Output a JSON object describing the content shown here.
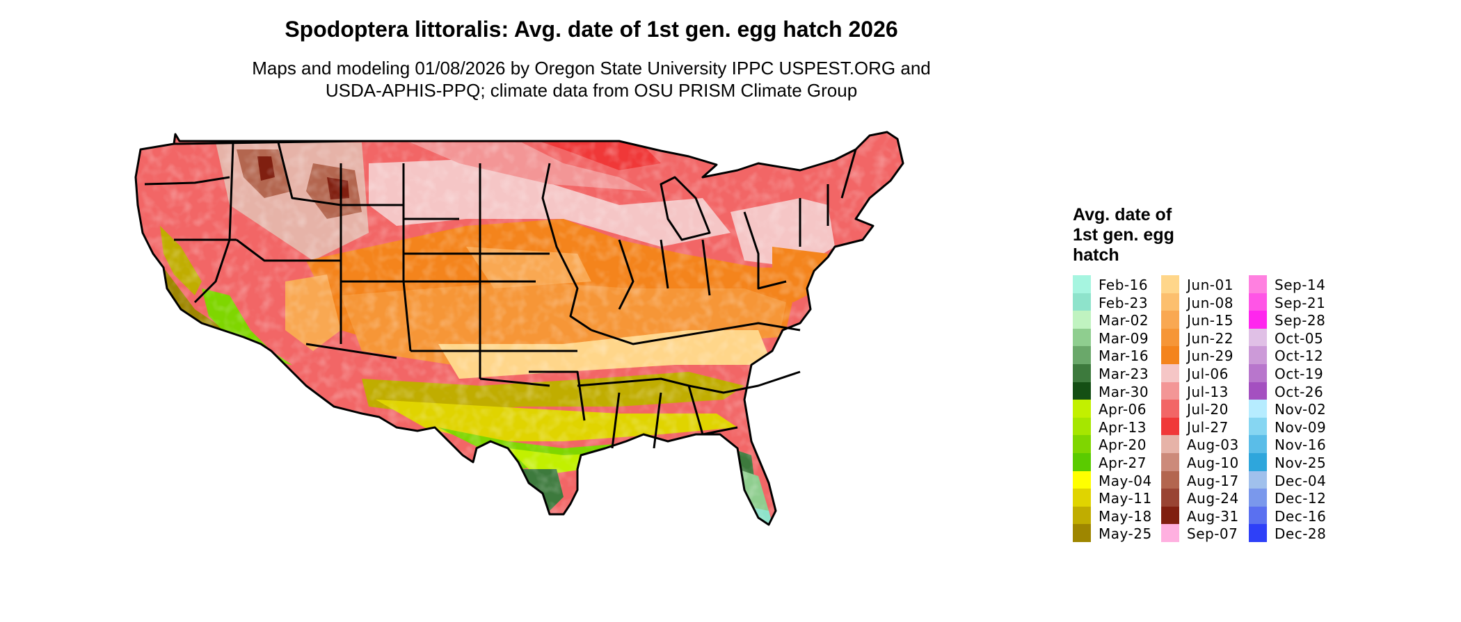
{
  "title": "Spodoptera littoralis: Avg. date of 1st gen. egg hatch 2026",
  "subtitle_lines": [
    "Maps and modeling 01/08/2026 by Oregon State University IPPC USPEST.ORG and",
    "USDA-APHIS-PPQ; climate data from OSU PRISM Climate Group"
  ],
  "map": {
    "region": "Contiguous United States",
    "state_border_color": "#000000",
    "fill_legend_ref": "legend.items"
  },
  "legend": {
    "title_lines": [
      "Avg. date of",
      "1st gen. egg",
      "hatch"
    ],
    "columns": 3,
    "rows_per_column": 15,
    "items": [
      {
        "label": "Feb-16",
        "color": "#a6f5e0"
      },
      {
        "label": "Feb-23",
        "color": "#8ee3cb"
      },
      {
        "label": "Mar-02",
        "color": "#c0f3c0"
      },
      {
        "label": "Mar-09",
        "color": "#8fce8f"
      },
      {
        "label": "Mar-16",
        "color": "#6aa86a"
      },
      {
        "label": "Mar-23",
        "color": "#3d7a3d"
      },
      {
        "label": "Mar-30",
        "color": "#144f14"
      },
      {
        "label": "Apr-06",
        "color": "#c2f000"
      },
      {
        "label": "Apr-13",
        "color": "#a6e600"
      },
      {
        "label": "Apr-20",
        "color": "#7fd600"
      },
      {
        "label": "Apr-27",
        "color": "#5acb00"
      },
      {
        "label": "May-04",
        "color": "#ffff00"
      },
      {
        "label": "May-11",
        "color": "#e0d400"
      },
      {
        "label": "May-18",
        "color": "#c0ad00"
      },
      {
        "label": "May-25",
        "color": "#9e8600"
      },
      {
        "label": "Jun-01",
        "color": "#ffd68a"
      },
      {
        "label": "Jun-08",
        "color": "#fcbf6e"
      },
      {
        "label": "Jun-15",
        "color": "#f9a852"
      },
      {
        "label": "Jun-22",
        "color": "#f69637"
      },
      {
        "label": "Jun-29",
        "color": "#f4841c"
      },
      {
        "label": "Jul-06",
        "color": "#f5c6c6"
      },
      {
        "label": "Jul-13",
        "color": "#f39696"
      },
      {
        "label": "Jul-20",
        "color": "#f26666"
      },
      {
        "label": "Jul-27",
        "color": "#f03838"
      },
      {
        "label": "Aug-03",
        "color": "#e6b3a8"
      },
      {
        "label": "Aug-10",
        "color": "#cc8a7a"
      },
      {
        "label": "Aug-17",
        "color": "#b3664f"
      },
      {
        "label": "Aug-24",
        "color": "#994433"
      },
      {
        "label": "Aug-31",
        "color": "#801f10"
      },
      {
        "label": "Sep-07",
        "color": "#ffb0e0"
      },
      {
        "label": "Sep-14",
        "color": "#ff80e0"
      },
      {
        "label": "Sep-21",
        "color": "#ff55e6"
      },
      {
        "label": "Sep-28",
        "color": "#ff26ee"
      },
      {
        "label": "Oct-05",
        "color": "#e0c0e6"
      },
      {
        "label": "Oct-12",
        "color": "#cc9ad8"
      },
      {
        "label": "Oct-19",
        "color": "#b876cc"
      },
      {
        "label": "Oct-26",
        "color": "#a450c0"
      },
      {
        "label": "Nov-02",
        "color": "#b6ecff"
      },
      {
        "label": "Nov-09",
        "color": "#86d6f2"
      },
      {
        "label": "Nov-16",
        "color": "#5abde8"
      },
      {
        "label": "Nov-25",
        "color": "#2ea6dc"
      },
      {
        "label": "Dec-04",
        "color": "#a0c0ec"
      },
      {
        "label": "Dec-12",
        "color": "#7a98ec"
      },
      {
        "label": "Dec-16",
        "color": "#5a70f0"
      },
      {
        "label": "Dec-28",
        "color": "#2e40f8"
      }
    ]
  }
}
